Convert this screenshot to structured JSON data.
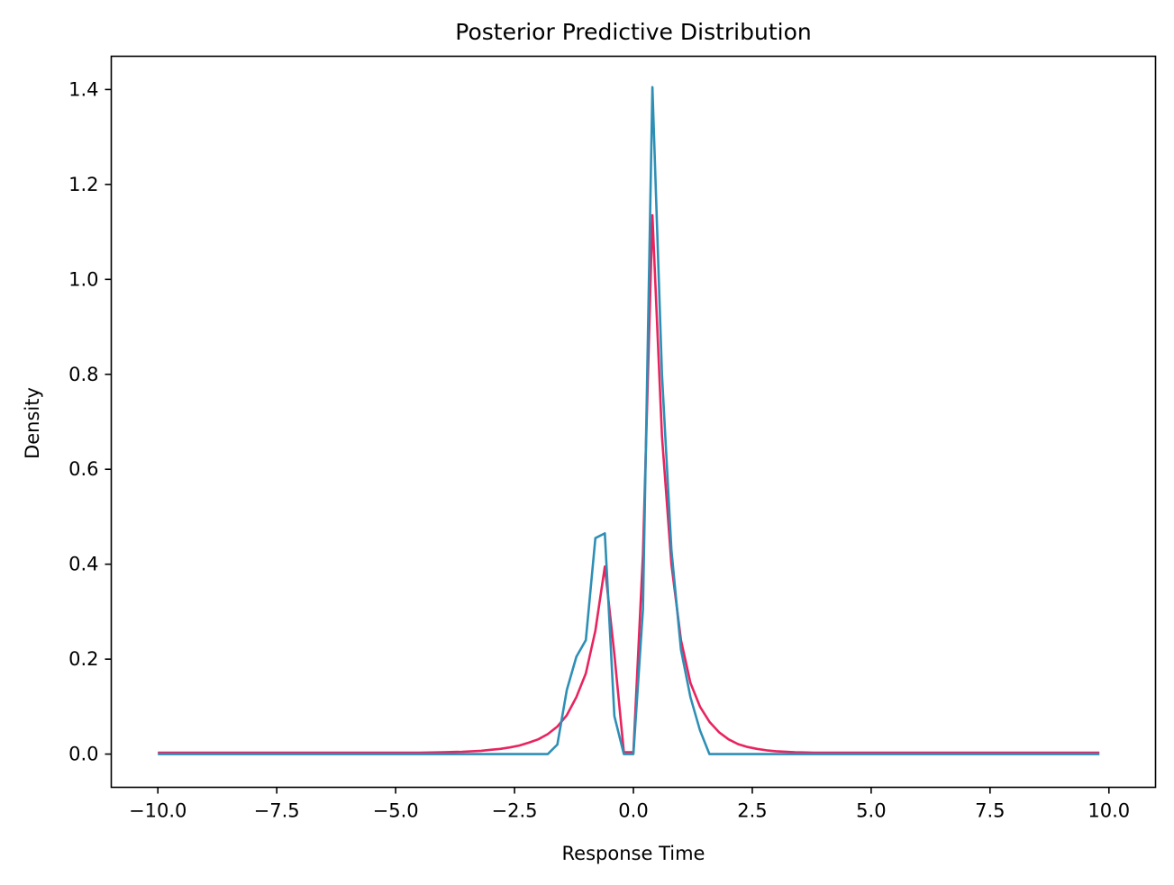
{
  "chart_data": {
    "type": "line",
    "title": "Posterior Predictive Distribution",
    "xlabel": "Response Time",
    "ylabel": "Density",
    "xlim": [
      -10.98,
      10.98
    ],
    "ylim": [
      -0.07,
      1.47
    ],
    "xticks": [
      -10.0,
      -7.5,
      -5.0,
      -2.5,
      0.0,
      2.5,
      5.0,
      7.5,
      10.0
    ],
    "xtick_labels": [
      "−10.0",
      "−7.5",
      "−5.0",
      "−2.5",
      "0.0",
      "2.5",
      "5.0",
      "7.5",
      "10.0"
    ],
    "yticks": [
      0.0,
      0.2,
      0.4,
      0.6,
      0.8,
      1.0,
      1.2,
      1.4
    ],
    "ytick_labels": [
      "0.0",
      "0.2",
      "0.4",
      "0.6",
      "0.8",
      "1.0",
      "1.2",
      "1.4"
    ],
    "grid": false,
    "series": [
      {
        "color": "#e8245f",
        "x": [
          -10.0,
          -9.0,
          -8.0,
          -7.0,
          -6.0,
          -5.0,
          -4.5,
          -4.0,
          -3.6,
          -3.2,
          -3.0,
          -2.8,
          -2.6,
          -2.4,
          -2.2,
          -2.0,
          -1.8,
          -1.6,
          -1.4,
          -1.2,
          -1.0,
          -0.8,
          -0.6,
          -0.4,
          -0.2,
          0.0,
          0.2,
          0.4,
          0.6,
          0.8,
          1.0,
          1.2,
          1.4,
          1.6,
          1.8,
          2.0,
          2.2,
          2.4,
          2.6,
          2.8,
          3.0,
          3.4,
          3.8,
          4.5,
          5.5,
          7.0,
          8.5,
          9.8
        ],
        "y": [
          0.003,
          0.003,
          0.003,
          0.003,
          0.003,
          0.003,
          0.003,
          0.004,
          0.005,
          0.007,
          0.009,
          0.011,
          0.014,
          0.018,
          0.024,
          0.031,
          0.042,
          0.058,
          0.082,
          0.12,
          0.17,
          0.26,
          0.395,
          0.21,
          0.004,
          0.004,
          0.42,
          1.135,
          0.67,
          0.4,
          0.24,
          0.15,
          0.1,
          0.068,
          0.046,
          0.031,
          0.021,
          0.015,
          0.011,
          0.008,
          0.006,
          0.004,
          0.003,
          0.003,
          0.003,
          0.003,
          0.003,
          0.003
        ]
      },
      {
        "color": "#2e8fb5",
        "x": [
          -10.0,
          -1.8,
          -1.6,
          -1.4,
          -1.2,
          -1.0,
          -0.8,
          -0.6,
          -0.4,
          -0.2,
          0.0,
          0.2,
          0.4,
          0.6,
          0.8,
          1.0,
          1.2,
          1.4,
          1.6,
          9.8
        ],
        "y": [
          0.0,
          0.0,
          0.02,
          0.135,
          0.205,
          0.24,
          0.455,
          0.465,
          0.08,
          0.0,
          0.0,
          0.305,
          1.405,
          0.8,
          0.43,
          0.22,
          0.12,
          0.05,
          0.0,
          0.0
        ]
      }
    ]
  }
}
